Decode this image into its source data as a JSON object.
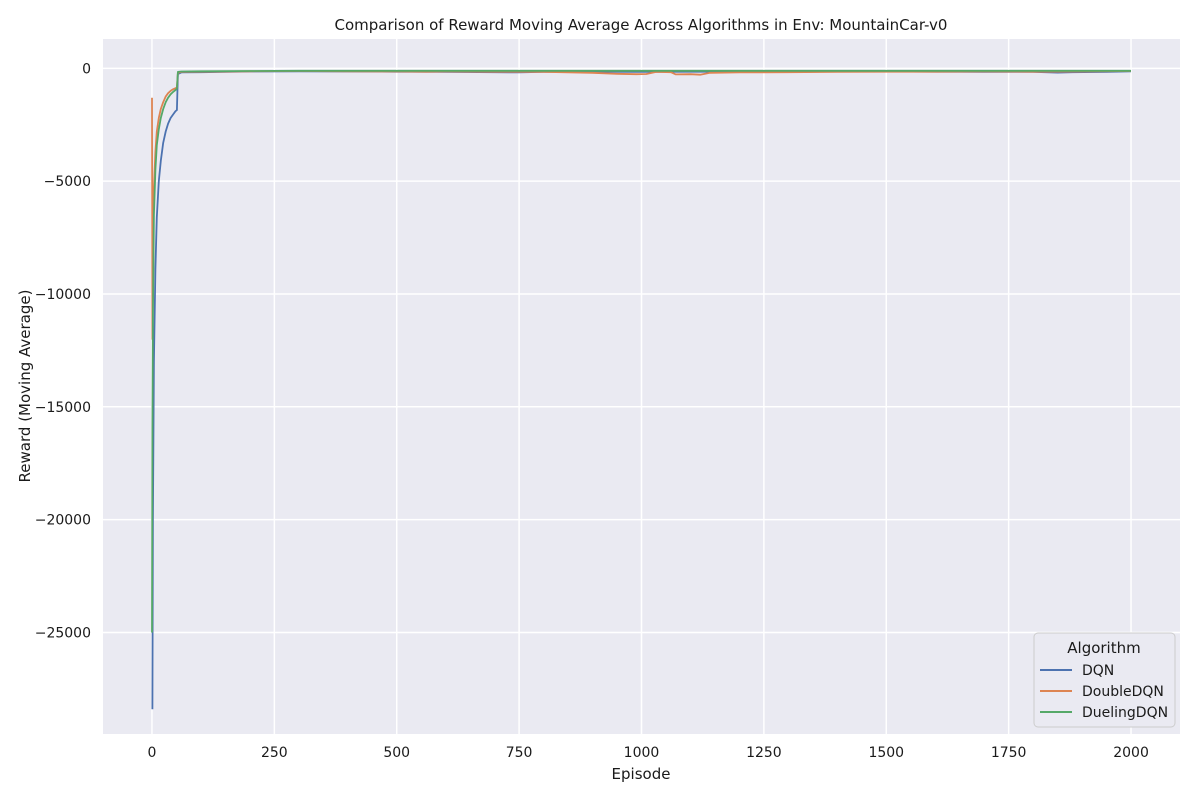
{
  "chart_data": {
    "type": "line",
    "title": "Comparison of Reward Moving Average Across Algorithms in Env: MountainCar-v0",
    "xlabel": "Episode",
    "ylabel": "Reward (Moving Average)",
    "xlim": [
      -100,
      2100
    ],
    "ylim": [
      -29500,
      1300
    ],
    "xticks": [
      0,
      250,
      500,
      750,
      1000,
      1250,
      1500,
      1750,
      2000
    ],
    "xtick_labels": [
      "0",
      "250",
      "500",
      "750",
      "1000",
      "1250",
      "1500",
      "1750",
      "2000"
    ],
    "yticks": [
      0,
      -5000,
      -10000,
      -15000,
      -20000,
      -25000
    ],
    "ytick_labels": [
      "0",
      "−5000",
      "−10000",
      "−15000",
      "−20000",
      "−25000"
    ],
    "grid": true,
    "legend": {
      "title": "Algorithm",
      "position": "bottom-right"
    },
    "series": [
      {
        "name": "DQN",
        "color": "#4c72b0",
        "points": [
          [
            1,
            -28400
          ],
          [
            2,
            -20000
          ],
          [
            4,
            -13000
          ],
          [
            7,
            -8900
          ],
          [
            10,
            -6600
          ],
          [
            14,
            -5000
          ],
          [
            18,
            -4100
          ],
          [
            23,
            -3300
          ],
          [
            28,
            -2800
          ],
          [
            33,
            -2450
          ],
          [
            38,
            -2200
          ],
          [
            43,
            -2050
          ],
          [
            48,
            -1900
          ],
          [
            51,
            -1850
          ],
          [
            53,
            -250
          ],
          [
            60,
            -180
          ],
          [
            100,
            -170
          ],
          [
            200,
            -140
          ],
          [
            300,
            -130
          ],
          [
            400,
            -140
          ],
          [
            500,
            -150
          ],
          [
            600,
            -160
          ],
          [
            700,
            -170
          ],
          [
            750,
            -180
          ],
          [
            800,
            -160
          ],
          [
            900,
            -150
          ],
          [
            1000,
            -160
          ],
          [
            1100,
            -150
          ],
          [
            1200,
            -150
          ],
          [
            1300,
            -160
          ],
          [
            1400,
            -140
          ],
          [
            1500,
            -140
          ],
          [
            1600,
            -150
          ],
          [
            1700,
            -160
          ],
          [
            1800,
            -160
          ],
          [
            1850,
            -190
          ],
          [
            1880,
            -170
          ],
          [
            1950,
            -160
          ],
          [
            2000,
            -130
          ]
        ]
      },
      {
        "name": "DoubleDQN",
        "color": "#dd8452",
        "points": [
          [
            0,
            -1300
          ],
          [
            1,
            -12000
          ],
          [
            2,
            -8200
          ],
          [
            4,
            -5300
          ],
          [
            7,
            -3700
          ],
          [
            10,
            -2800
          ],
          [
            14,
            -2200
          ],
          [
            18,
            -1800
          ],
          [
            23,
            -1500
          ],
          [
            28,
            -1250
          ],
          [
            33,
            -1100
          ],
          [
            38,
            -1000
          ],
          [
            43,
            -930
          ],
          [
            48,
            -880
          ],
          [
            51,
            -850
          ],
          [
            53,
            -200
          ],
          [
            60,
            -160
          ],
          [
            100,
            -150
          ],
          [
            200,
            -130
          ],
          [
            300,
            -120
          ],
          [
            400,
            -130
          ],
          [
            500,
            -140
          ],
          [
            560,
            -150
          ],
          [
            600,
            -140
          ],
          [
            700,
            -150
          ],
          [
            800,
            -160
          ],
          [
            900,
            -200
          ],
          [
            950,
            -240
          ],
          [
            990,
            -260
          ],
          [
            1010,
            -250
          ],
          [
            1030,
            -160
          ],
          [
            1060,
            -170
          ],
          [
            1070,
            -270
          ],
          [
            1100,
            -260
          ],
          [
            1120,
            -280
          ],
          [
            1140,
            -200
          ],
          [
            1200,
            -180
          ],
          [
            1300,
            -170
          ],
          [
            1400,
            -160
          ],
          [
            1500,
            -150
          ],
          [
            1600,
            -150
          ],
          [
            1700,
            -140
          ],
          [
            1800,
            -150
          ],
          [
            1900,
            -140
          ],
          [
            2000,
            -120
          ]
        ]
      },
      {
        "name": "DuelingDQN",
        "color": "#55a868",
        "points": [
          [
            0,
            -25000
          ],
          [
            1,
            -16000
          ],
          [
            2,
            -11000
          ],
          [
            4,
            -6500
          ],
          [
            7,
            -4500
          ],
          [
            10,
            -3400
          ],
          [
            14,
            -2700
          ],
          [
            18,
            -2200
          ],
          [
            23,
            -1800
          ],
          [
            28,
            -1500
          ],
          [
            33,
            -1300
          ],
          [
            38,
            -1150
          ],
          [
            43,
            -1050
          ],
          [
            48,
            -960
          ],
          [
            51,
            -900
          ],
          [
            53,
            -160
          ],
          [
            60,
            -140
          ],
          [
            100,
            -130
          ],
          [
            200,
            -120
          ],
          [
            300,
            -110
          ],
          [
            400,
            -110
          ],
          [
            500,
            -110
          ],
          [
            600,
            -110
          ],
          [
            700,
            -110
          ],
          [
            800,
            -110
          ],
          [
            900,
            -110
          ],
          [
            1000,
            -110
          ],
          [
            1100,
            -110
          ],
          [
            1200,
            -110
          ],
          [
            1300,
            -110
          ],
          [
            1400,
            -110
          ],
          [
            1500,
            -110
          ],
          [
            1600,
            -110
          ],
          [
            1700,
            -110
          ],
          [
            1800,
            -110
          ],
          [
            1900,
            -110
          ],
          [
            2000,
            -110
          ]
        ]
      }
    ]
  }
}
